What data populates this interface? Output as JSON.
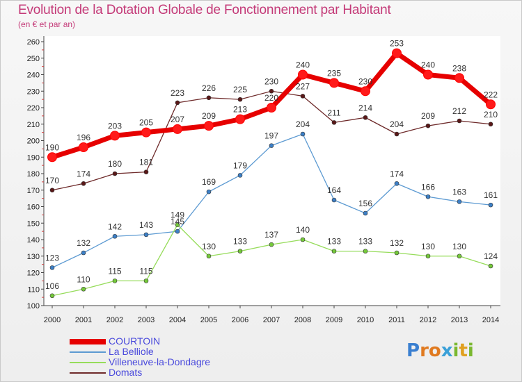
{
  "title": "Evolution de la Dotation Globale de Fonctionnement par Habitant",
  "subtitle": "(en € et par an)",
  "logo": {
    "text": "Proxiti"
  },
  "chart_data": {
    "type": "line",
    "title": "Evolution de la Dotation Globale de Fonctionnement par Habitant",
    "subtitle": "(en € et par an)",
    "x": [
      "2000",
      "2001",
      "2002",
      "2003",
      "2004",
      "2005",
      "2006",
      "2007",
      "2008",
      "2009",
      "2010",
      "2011",
      "2012",
      "2013",
      "2014"
    ],
    "yticks": [
      100,
      110,
      120,
      130,
      140,
      150,
      160,
      170,
      180,
      190,
      200,
      210,
      220,
      230,
      240,
      250,
      260
    ],
    "ylim": [
      100,
      260
    ],
    "grid": false,
    "legend_position": "bottom-left",
    "series": [
      {
        "name": "COURTOIN",
        "color": "#e60000",
        "values": [
          190,
          196,
          203,
          205,
          207,
          209,
          213,
          220,
          240,
          235,
          230,
          253,
          240,
          238,
          222
        ]
      },
      {
        "name": "La Belliole",
        "color": "#5c9ad2",
        "values": [
          123,
          132,
          142,
          143,
          145,
          169,
          179,
          197,
          204,
          164,
          156,
          174,
          166,
          163,
          161
        ]
      },
      {
        "name": "Villeneuve-la-Dondagre",
        "color": "#96dc5a",
        "values": [
          106,
          110,
          115,
          115,
          149,
          130,
          133,
          137,
          140,
          133,
          133,
          132,
          130,
          130,
          124
        ]
      },
      {
        "name": "Domats",
        "color": "#6e2a2a",
        "values": [
          170,
          174,
          180,
          181,
          223,
          226,
          225,
          230,
          227,
          211,
          214,
          204,
          209,
          212,
          210
        ]
      }
    ]
  }
}
